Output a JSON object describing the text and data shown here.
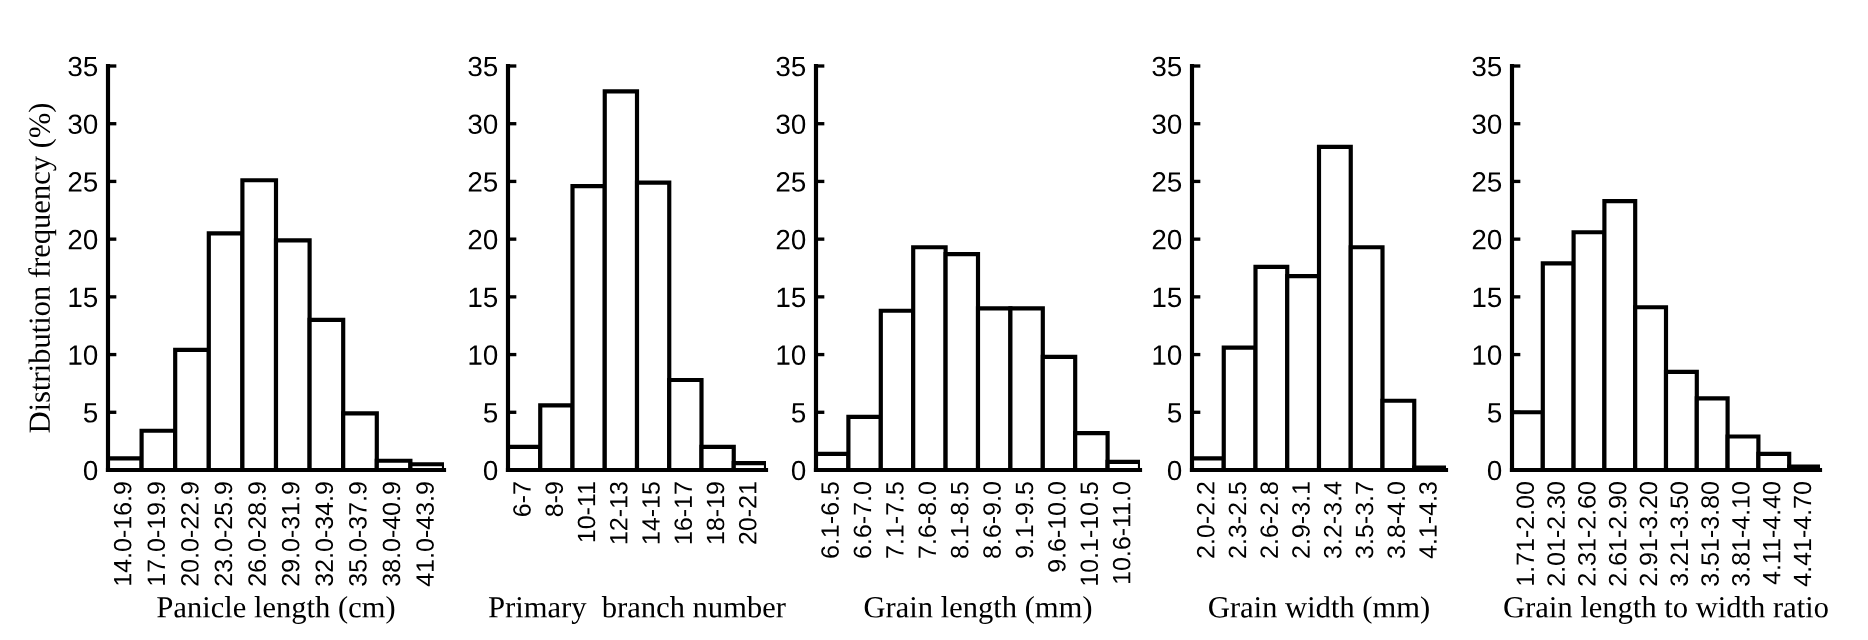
{
  "chart_data": [
    {
      "type": "bar",
      "xlabel": "Panicle length (cm)",
      "ylabel": "Distribution frequency (%)",
      "categories": [
        "14.0-16.9",
        "17.0-19.9",
        "20.0-22.9",
        "23.0-25.9",
        "26.0-28.9",
        "29.0-31.9",
        "32.0-34.9",
        "35.0-37.9",
        "38.0-40.9",
        "41.0-43.9"
      ],
      "values": [
        1.0,
        3.4,
        10.4,
        20.5,
        25.1,
        19.9,
        13.0,
        4.9,
        0.8,
        0.5
      ],
      "color": "#ffffff",
      "ylim": [
        0,
        35
      ],
      "yticks": [
        0,
        5,
        10,
        15,
        20,
        25,
        30,
        35
      ],
      "grid": false,
      "legend": false
    },
    {
      "type": "bar",
      "xlabel": "Primary  branch number",
      "categories": [
        "6-7",
        "8-9",
        "10-11",
        "12-13",
        "14-15",
        "16-17",
        "18-19",
        "20-21"
      ],
      "values": [
        2.0,
        5.6,
        24.6,
        32.8,
        24.9,
        7.8,
        2.0,
        0.6
      ],
      "color": "#ffffff",
      "ylim": [
        0,
        35
      ],
      "yticks": [
        0,
        5,
        10,
        15,
        20,
        25,
        30,
        35
      ],
      "grid": false,
      "legend": false
    },
    {
      "type": "bar",
      "xlabel": "Grain length (mm)",
      "categories": [
        "6.1-6.5",
        "6.6-7.0",
        "7.1-7.5",
        "7.6-8.0",
        "8.1-8.5",
        "8.6-9.0",
        "9.1-9.5",
        "9.6-10.0",
        "10.1-10.5",
        "10.6-11.0"
      ],
      "values": [
        1.4,
        4.6,
        13.8,
        19.3,
        18.7,
        14.0,
        14.0,
        9.8,
        3.2,
        0.7
      ],
      "color": "#ffffff",
      "ylim": [
        0,
        35
      ],
      "yticks": [
        0,
        5,
        10,
        15,
        20,
        25,
        30,
        35
      ],
      "grid": false,
      "legend": false
    },
    {
      "type": "bar",
      "xlabel": "Grain width (mm)",
      "categories": [
        "2.0-2.2",
        "2.3-2.5",
        "2.6-2.8",
        "2.9-3.1",
        "3.2-3.4",
        "3.5-3.7",
        "3.8-4.0",
        "4.1-4.3"
      ],
      "values": [
        1.0,
        10.6,
        17.6,
        16.8,
        28.0,
        19.3,
        6.0,
        0.2
      ],
      "color": "#ffffff",
      "ylim": [
        0,
        35
      ],
      "yticks": [
        0,
        5,
        10,
        15,
        20,
        25,
        30,
        35
      ],
      "grid": false,
      "legend": false
    },
    {
      "type": "bar",
      "xlabel": "Grain length to width ratio",
      "categories": [
        "1.71-2.00",
        "2.01-2.30",
        "2.31-2.60",
        "2.61-2.90",
        "2.91-3.20",
        "3.21-3.50",
        "3.51-3.80",
        "3.81-4.10",
        "4.11-4.40",
        "4.41-4.70"
      ],
      "values": [
        5.0,
        17.9,
        20.6,
        23.3,
        14.1,
        8.5,
        6.2,
        2.9,
        1.4,
        0.3
      ],
      "color": "#ffffff",
      "ylim": [
        0,
        35
      ],
      "yticks": [
        0,
        5,
        10,
        15,
        20,
        25,
        30,
        35
      ],
      "grid": false,
      "legend": false
    }
  ]
}
